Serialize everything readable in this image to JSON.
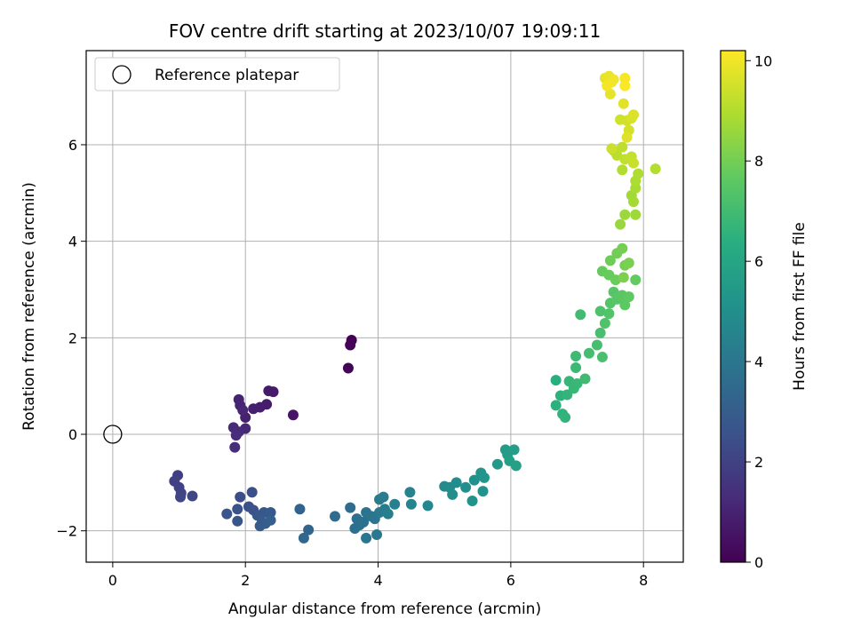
{
  "chart_data": {
    "type": "scatter",
    "title": "FOV centre drift starting at 2023/10/07 19:09:11",
    "xlabel": "Angular distance from reference (arcmin)",
    "ylabel": "Rotation from reference (arcmin)",
    "colorbar_label": "Hours from first FF file",
    "colormap": "viridis",
    "xlim": [
      -0.4,
      8.6
    ],
    "ylim": [
      -2.65,
      7.95
    ],
    "clim": [
      0,
      10.2
    ],
    "x_ticks": [
      0,
      2,
      4,
      6,
      8
    ],
    "x_tick_labels": [
      "0",
      "2",
      "4",
      "6",
      "8"
    ],
    "y_ticks": [
      -2,
      0,
      2,
      4,
      6
    ],
    "y_tick_labels": [
      "−2",
      "0",
      "2",
      "4",
      "6"
    ],
    "colorbar_ticks": [
      0,
      2,
      4,
      6,
      8,
      10
    ],
    "colorbar_tick_labels": [
      "0",
      "2",
      "4",
      "6",
      "8",
      "10"
    ],
    "grid": true,
    "legend": {
      "position": "upper-left",
      "entries": [
        "Reference platepar"
      ]
    },
    "reference_point": {
      "x": 0,
      "y": 0
    },
    "points": [
      {
        "x": 3.6,
        "y": 1.95,
        "c": 0.0
      },
      {
        "x": 3.58,
        "y": 1.85,
        "c": 0.05
      },
      {
        "x": 3.55,
        "y": 1.37,
        "c": 0.1
      },
      {
        "x": 2.72,
        "y": 0.4,
        "c": 0.6
      },
      {
        "x": 2.42,
        "y": 0.88,
        "c": 0.7
      },
      {
        "x": 2.35,
        "y": 0.9,
        "c": 0.75
      },
      {
        "x": 2.32,
        "y": 0.62,
        "c": 0.8
      },
      {
        "x": 2.22,
        "y": 0.56,
        "c": 0.85
      },
      {
        "x": 2.12,
        "y": 0.53,
        "c": 0.9
      },
      {
        "x": 2.0,
        "y": 0.35,
        "c": 0.95
      },
      {
        "x": 1.9,
        "y": 0.72,
        "c": 1.0
      },
      {
        "x": 1.92,
        "y": 0.6,
        "c": 1.05
      },
      {
        "x": 1.96,
        "y": 0.5,
        "c": 1.1
      },
      {
        "x": 2.0,
        "y": 0.12,
        "c": 1.15
      },
      {
        "x": 1.9,
        "y": 0.05,
        "c": 1.2
      },
      {
        "x": 1.82,
        "y": 0.14,
        "c": 1.25
      },
      {
        "x": 1.86,
        "y": -0.02,
        "c": 1.3
      },
      {
        "x": 1.84,
        "y": -0.27,
        "c": 1.35
      },
      {
        "x": 0.98,
        "y": -0.85,
        "c": 1.9
      },
      {
        "x": 0.93,
        "y": -0.97,
        "c": 1.95
      },
      {
        "x": 1.0,
        "y": -1.1,
        "c": 2.0
      },
      {
        "x": 1.03,
        "y": -1.22,
        "c": 2.05
      },
      {
        "x": 1.02,
        "y": -1.3,
        "c": 2.1
      },
      {
        "x": 1.2,
        "y": -1.28,
        "c": 2.15
      },
      {
        "x": 1.92,
        "y": -1.3,
        "c": 2.4
      },
      {
        "x": 2.1,
        "y": -1.2,
        "c": 2.45
      },
      {
        "x": 2.05,
        "y": -1.5,
        "c": 2.5
      },
      {
        "x": 2.12,
        "y": -1.57,
        "c": 2.55
      },
      {
        "x": 1.88,
        "y": -1.55,
        "c": 2.6
      },
      {
        "x": 1.72,
        "y": -1.65,
        "c": 2.65
      },
      {
        "x": 1.88,
        "y": -1.8,
        "c": 2.7
      },
      {
        "x": 2.18,
        "y": -1.68,
        "c": 2.75
      },
      {
        "x": 2.28,
        "y": -1.62,
        "c": 2.8
      },
      {
        "x": 2.38,
        "y": -1.62,
        "c": 2.85
      },
      {
        "x": 2.25,
        "y": -1.82,
        "c": 2.9
      },
      {
        "x": 2.22,
        "y": -1.9,
        "c": 2.95
      },
      {
        "x": 2.3,
        "y": -1.85,
        "c": 3.0
      },
      {
        "x": 2.38,
        "y": -1.78,
        "c": 3.05
      },
      {
        "x": 2.82,
        "y": -1.55,
        "c": 3.2
      },
      {
        "x": 2.95,
        "y": -1.98,
        "c": 3.3
      },
      {
        "x": 2.88,
        "y": -2.15,
        "c": 3.35
      },
      {
        "x": 3.35,
        "y": -1.7,
        "c": 3.5
      },
      {
        "x": 3.58,
        "y": -1.52,
        "c": 3.6
      },
      {
        "x": 3.68,
        "y": -1.75,
        "c": 3.65
      },
      {
        "x": 3.72,
        "y": -1.88,
        "c": 3.7
      },
      {
        "x": 3.65,
        "y": -1.95,
        "c": 3.75
      },
      {
        "x": 3.78,
        "y": -1.82,
        "c": 3.8
      },
      {
        "x": 3.82,
        "y": -1.62,
        "c": 3.85
      },
      {
        "x": 3.9,
        "y": -1.7,
        "c": 3.9
      },
      {
        "x": 3.95,
        "y": -1.75,
        "c": 3.95
      },
      {
        "x": 3.82,
        "y": -2.15,
        "c": 4.0
      },
      {
        "x": 3.98,
        "y": -2.08,
        "c": 4.05
      },
      {
        "x": 4.02,
        "y": -1.62,
        "c": 4.1
      },
      {
        "x": 4.02,
        "y": -1.35,
        "c": 4.15
      },
      {
        "x": 4.08,
        "y": -1.3,
        "c": 4.2
      },
      {
        "x": 4.1,
        "y": -1.55,
        "c": 4.25
      },
      {
        "x": 4.15,
        "y": -1.65,
        "c": 4.3
      },
      {
        "x": 4.25,
        "y": -1.45,
        "c": 4.4
      },
      {
        "x": 4.48,
        "y": -1.2,
        "c": 4.5
      },
      {
        "x": 4.5,
        "y": -1.45,
        "c": 4.55
      },
      {
        "x": 4.75,
        "y": -1.48,
        "c": 4.65
      },
      {
        "x": 5.0,
        "y": -1.08,
        "c": 4.8
      },
      {
        "x": 5.08,
        "y": -1.1,
        "c": 4.85
      },
      {
        "x": 5.12,
        "y": -1.25,
        "c": 4.9
      },
      {
        "x": 5.18,
        "y": -1.0,
        "c": 4.95
      },
      {
        "x": 5.32,
        "y": -1.1,
        "c": 5.0
      },
      {
        "x": 5.45,
        "y": -0.95,
        "c": 5.1
      },
      {
        "x": 5.42,
        "y": -1.38,
        "c": 5.15
      },
      {
        "x": 5.58,
        "y": -1.18,
        "c": 5.2
      },
      {
        "x": 5.55,
        "y": -0.8,
        "c": 5.25
      },
      {
        "x": 5.6,
        "y": -0.9,
        "c": 5.3
      },
      {
        "x": 5.8,
        "y": -0.62,
        "c": 5.45
      },
      {
        "x": 5.92,
        "y": -0.32,
        "c": 5.55
      },
      {
        "x": 5.95,
        "y": -0.42,
        "c": 5.6
      },
      {
        "x": 6.05,
        "y": -0.32,
        "c": 5.65
      },
      {
        "x": 5.98,
        "y": -0.55,
        "c": 5.7
      },
      {
        "x": 6.08,
        "y": -0.65,
        "c": 5.75
      },
      {
        "x": 6.68,
        "y": 1.12,
        "c": 6.4
      },
      {
        "x": 6.68,
        "y": 0.6,
        "c": 6.45
      },
      {
        "x": 6.75,
        "y": 0.8,
        "c": 6.5
      },
      {
        "x": 6.78,
        "y": 0.42,
        "c": 6.55
      },
      {
        "x": 6.82,
        "y": 0.35,
        "c": 6.6
      },
      {
        "x": 6.85,
        "y": 0.82,
        "c": 6.65
      },
      {
        "x": 6.88,
        "y": 1.1,
        "c": 6.7
      },
      {
        "x": 6.95,
        "y": 0.95,
        "c": 6.75
      },
      {
        "x": 7.0,
        "y": 1.05,
        "c": 6.8
      },
      {
        "x": 6.98,
        "y": 1.38,
        "c": 6.85
      },
      {
        "x": 6.98,
        "y": 1.62,
        "c": 6.9
      },
      {
        "x": 7.12,
        "y": 1.15,
        "c": 6.95
      },
      {
        "x": 7.05,
        "y": 2.48,
        "c": 7.0
      },
      {
        "x": 7.18,
        "y": 1.68,
        "c": 7.05
      },
      {
        "x": 7.3,
        "y": 1.85,
        "c": 7.1
      },
      {
        "x": 7.35,
        "y": 2.1,
        "c": 7.15
      },
      {
        "x": 7.38,
        "y": 1.6,
        "c": 7.2
      },
      {
        "x": 7.35,
        "y": 2.55,
        "c": 7.25
      },
      {
        "x": 7.42,
        "y": 2.3,
        "c": 7.3
      },
      {
        "x": 7.48,
        "y": 2.5,
        "c": 7.35
      },
      {
        "x": 7.5,
        "y": 2.72,
        "c": 7.4
      },
      {
        "x": 7.55,
        "y": 2.95,
        "c": 7.45
      },
      {
        "x": 7.6,
        "y": 2.8,
        "c": 7.5
      },
      {
        "x": 7.68,
        "y": 2.88,
        "c": 7.55
      },
      {
        "x": 7.72,
        "y": 2.68,
        "c": 7.6
      },
      {
        "x": 7.78,
        "y": 2.85,
        "c": 7.65
      },
      {
        "x": 7.88,
        "y": 3.2,
        "c": 7.7
      },
      {
        "x": 7.38,
        "y": 3.38,
        "c": 7.75
      },
      {
        "x": 7.48,
        "y": 3.3,
        "c": 7.8
      },
      {
        "x": 7.58,
        "y": 3.2,
        "c": 7.85
      },
      {
        "x": 7.5,
        "y": 3.6,
        "c": 7.9
      },
      {
        "x": 7.6,
        "y": 3.75,
        "c": 7.95
      },
      {
        "x": 7.68,
        "y": 3.85,
        "c": 8.0
      },
      {
        "x": 7.72,
        "y": 3.5,
        "c": 8.05
      },
      {
        "x": 7.78,
        "y": 3.55,
        "c": 8.1
      },
      {
        "x": 7.7,
        "y": 3.25,
        "c": 8.15
      },
      {
        "x": 7.65,
        "y": 4.35,
        "c": 8.6
      },
      {
        "x": 7.72,
        "y": 4.55,
        "c": 8.65
      },
      {
        "x": 7.88,
        "y": 4.55,
        "c": 8.7
      },
      {
        "x": 7.82,
        "y": 4.95,
        "c": 8.75
      },
      {
        "x": 7.85,
        "y": 4.82,
        "c": 8.8
      },
      {
        "x": 7.88,
        "y": 5.1,
        "c": 8.85
      },
      {
        "x": 7.88,
        "y": 5.25,
        "c": 8.9
      },
      {
        "x": 7.92,
        "y": 5.4,
        "c": 8.95
      },
      {
        "x": 7.68,
        "y": 5.48,
        "c": 9.0
      },
      {
        "x": 8.18,
        "y": 5.5,
        "c": 9.05
      },
      {
        "x": 7.55,
        "y": 5.88,
        "c": 9.1
      },
      {
        "x": 7.6,
        "y": 5.78,
        "c": 9.15
      },
      {
        "x": 7.68,
        "y": 5.95,
        "c": 9.2
      },
      {
        "x": 7.72,
        "y": 5.7,
        "c": 9.25
      },
      {
        "x": 7.82,
        "y": 5.75,
        "c": 9.3
      },
      {
        "x": 7.85,
        "y": 5.62,
        "c": 9.35
      },
      {
        "x": 7.52,
        "y": 5.92,
        "c": 9.4
      },
      {
        "x": 7.65,
        "y": 6.52,
        "c": 9.45
      },
      {
        "x": 7.75,
        "y": 6.5,
        "c": 9.5
      },
      {
        "x": 7.78,
        "y": 6.3,
        "c": 9.55
      },
      {
        "x": 7.82,
        "y": 6.55,
        "c": 9.6
      },
      {
        "x": 7.85,
        "y": 6.62,
        "c": 9.65
      },
      {
        "x": 7.75,
        "y": 6.15,
        "c": 9.7
      },
      {
        "x": 7.7,
        "y": 6.85,
        "c": 9.75
      },
      {
        "x": 7.5,
        "y": 7.05,
        "c": 9.8
      },
      {
        "x": 7.42,
        "y": 7.38,
        "c": 9.85
      },
      {
        "x": 7.48,
        "y": 7.42,
        "c": 9.9
      },
      {
        "x": 7.52,
        "y": 7.3,
        "c": 9.95
      },
      {
        "x": 7.55,
        "y": 7.35,
        "c": 10.0
      },
      {
        "x": 7.45,
        "y": 7.22,
        "c": 10.05
      },
      {
        "x": 7.72,
        "y": 7.38,
        "c": 10.1
      },
      {
        "x": 7.72,
        "y": 7.22,
        "c": 10.15
      }
    ]
  }
}
